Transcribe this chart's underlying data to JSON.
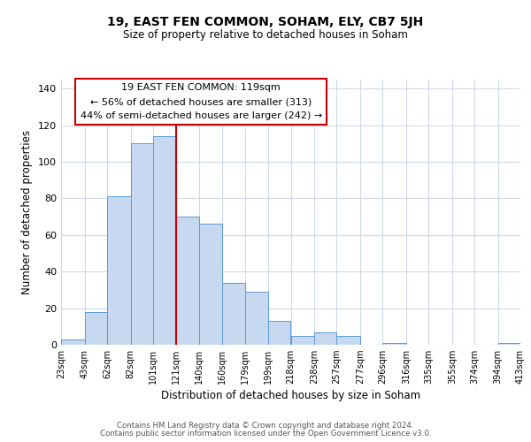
{
  "title": "19, EAST FEN COMMON, SOHAM, ELY, CB7 5JH",
  "subtitle": "Size of property relative to detached houses in Soham",
  "xlabel": "Distribution of detached houses by size in Soham",
  "ylabel": "Number of detached properties",
  "bar_edges": [
    23,
    43,
    62,
    82,
    101,
    121,
    140,
    160,
    179,
    199,
    218,
    238,
    257,
    277,
    296,
    316,
    335,
    355,
    374,
    394,
    413
  ],
  "bar_heights": [
    3,
    18,
    81,
    110,
    114,
    70,
    66,
    34,
    29,
    13,
    5,
    7,
    5,
    0,
    1,
    0,
    0,
    0,
    0,
    1
  ],
  "bar_color": "#c6d9f0",
  "bar_edgecolor": "#5b9bd5",
  "vline_x": 121,
  "vline_color": "#cc0000",
  "annotation_title": "19 EAST FEN COMMON: 119sqm",
  "annotation_line1": "← 56% of detached houses are smaller (313)",
  "annotation_line2": "44% of semi-detached houses are larger (242) →",
  "annotation_box_edgecolor": "#cc0000",
  "ylim": [
    0,
    145
  ],
  "yticks": [
    0,
    20,
    40,
    60,
    80,
    100,
    120,
    140
  ],
  "tick_labels": [
    "23sqm",
    "43sqm",
    "62sqm",
    "82sqm",
    "101sqm",
    "121sqm",
    "140sqm",
    "160sqm",
    "179sqm",
    "199sqm",
    "218sqm",
    "238sqm",
    "257sqm",
    "277sqm",
    "296sqm",
    "316sqm",
    "335sqm",
    "355sqm",
    "374sqm",
    "394sqm",
    "413sqm"
  ],
  "footer1": "Contains HM Land Registry data © Crown copyright and database right 2024.",
  "footer2": "Contains public sector information licensed under the Open Government Licence v3.0.",
  "bg_color": "#ffffff",
  "grid_color": "#d0d8e8"
}
